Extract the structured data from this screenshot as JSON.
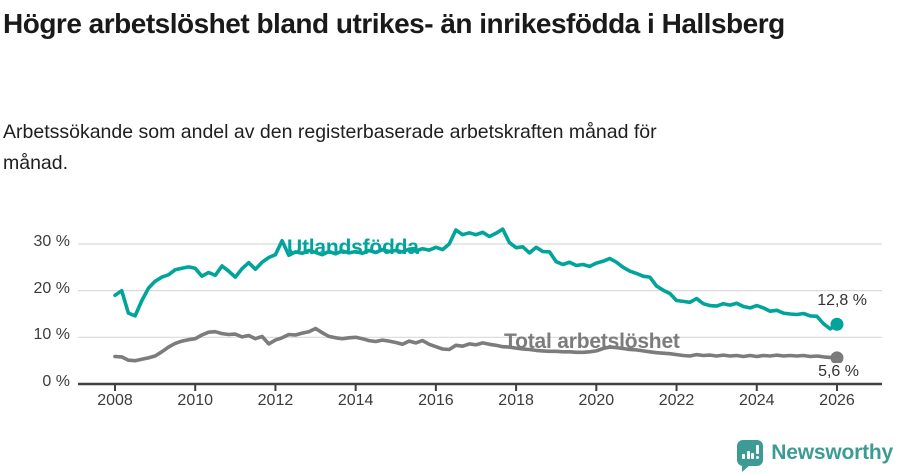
{
  "header": {
    "title": "Högre arbetslöshet bland utrikes- än inrikesfödda i Hallsberg",
    "subtitle": "Arbetssökande som andel av den registerbaserade arbetskraften månad för månad."
  },
  "colors": {
    "foreign_line": "#00a49b",
    "total_line": "#7c7c7c",
    "grid": "#dadada",
    "axis": "#3f3f3f",
    "tick_text": "#3c3c3c",
    "value_text": "#333333",
    "logo": "#3e9b94"
  },
  "chart_data": {
    "type": "line",
    "title": "Högre arbetslöshet bland utrikes- än inrikesfödda i Hallsberg",
    "subtitle": "Arbetssökande som andel av den registerbaserade arbetskraften månad för månad.",
    "xlabel": "",
    "ylabel": "",
    "grid": true,
    "legend_position": "inline-labels",
    "x_unit": "year",
    "x_start_year": 2008,
    "x_end_year": 2026,
    "points_per_year": 6,
    "x_tick_years": [
      2008,
      2010,
      2012,
      2014,
      2016,
      2018,
      2020,
      2022,
      2024,
      2026
    ],
    "y_ticks": [
      {
        "value": 30,
        "label": "30 %"
      },
      {
        "value": 20,
        "label": "20 %"
      },
      {
        "value": 10,
        "label": "10 %"
      },
      {
        "value": 0,
        "label": "0 %"
      }
    ],
    "ylim": [
      0,
      35
    ],
    "series": [
      {
        "name": "Utlandsfödda",
        "color": "#00a49b",
        "end_label": "12,8 %",
        "end_value": 12.8,
        "values": [
          19.0,
          20.0,
          15.2,
          14.6,
          17.8,
          20.5,
          22.0,
          22.9,
          23.4,
          24.5,
          24.8,
          25.1,
          24.8,
          23.1,
          23.9,
          23.3,
          25.3,
          24.2,
          22.9,
          24.7,
          26.0,
          24.6,
          26.1,
          27.1,
          27.7,
          30.7,
          27.6,
          28.3,
          28.0,
          28.6,
          28.2,
          27.7,
          28.4,
          27.9,
          28.5,
          28.1,
          28.4,
          28.0,
          28.6,
          28.2,
          28.8,
          28.4,
          28.6,
          28.3,
          28.9,
          28.5,
          29.0,
          28.7,
          29.3,
          28.8,
          30.0,
          33.0,
          32.0,
          32.4,
          32.0,
          32.5,
          31.6,
          32.3,
          33.2,
          30.3,
          29.2,
          29.4,
          28.1,
          29.3,
          28.4,
          28.3,
          26.2,
          25.6,
          26.1,
          25.4,
          25.6,
          25.2,
          25.9,
          26.3,
          26.9,
          26.1,
          25.0,
          24.2,
          23.7,
          23.1,
          22.9,
          21.0,
          20.1,
          19.4,
          17.9,
          17.7,
          17.5,
          18.3,
          17.2,
          16.8,
          16.7,
          17.2,
          16.9,
          17.3,
          16.6,
          16.3,
          16.8,
          16.3,
          15.6,
          15.8,
          15.2,
          15.0,
          14.9,
          15.1,
          14.6,
          14.5,
          12.9,
          11.8,
          12.8
        ]
      },
      {
        "name": "Total arbetslöshet",
        "color": "#7c7c7c",
        "end_label": "5,6 %",
        "end_value": 5.6,
        "values": [
          5.9,
          5.8,
          5.1,
          5.0,
          5.3,
          5.6,
          6.0,
          6.9,
          7.9,
          8.7,
          9.2,
          9.5,
          9.7,
          10.5,
          11.1,
          11.2,
          10.8,
          10.6,
          10.7,
          10.1,
          10.4,
          9.7,
          10.2,
          8.6,
          9.4,
          9.9,
          10.6,
          10.5,
          10.9,
          11.2,
          11.9,
          11.0,
          10.2,
          9.9,
          9.7,
          9.9,
          10.0,
          9.7,
          9.3,
          9.1,
          9.4,
          9.2,
          8.9,
          8.5,
          9.2,
          8.8,
          9.3,
          8.5,
          8.0,
          7.5,
          7.4,
          8.3,
          8.1,
          8.6,
          8.4,
          8.8,
          8.5,
          8.3,
          8.0,
          7.9,
          7.7,
          7.5,
          7.4,
          7.2,
          7.1,
          7.0,
          7.0,
          6.9,
          6.9,
          6.8,
          6.8,
          6.9,
          7.1,
          7.6,
          7.9,
          7.8,
          7.6,
          7.4,
          7.3,
          7.1,
          6.9,
          6.7,
          6.6,
          6.5,
          6.3,
          6.1,
          6.0,
          6.3,
          6.1,
          6.2,
          6.0,
          6.2,
          6.0,
          6.1,
          5.9,
          6.1,
          5.9,
          6.1,
          6.0,
          6.2,
          6.0,
          6.1,
          6.0,
          6.1,
          5.9,
          6.0,
          5.8,
          5.7,
          5.6
        ]
      }
    ]
  },
  "branding": {
    "name": "Newsworthy",
    "icon": "bar-chart-speech-bubble-icon"
  }
}
